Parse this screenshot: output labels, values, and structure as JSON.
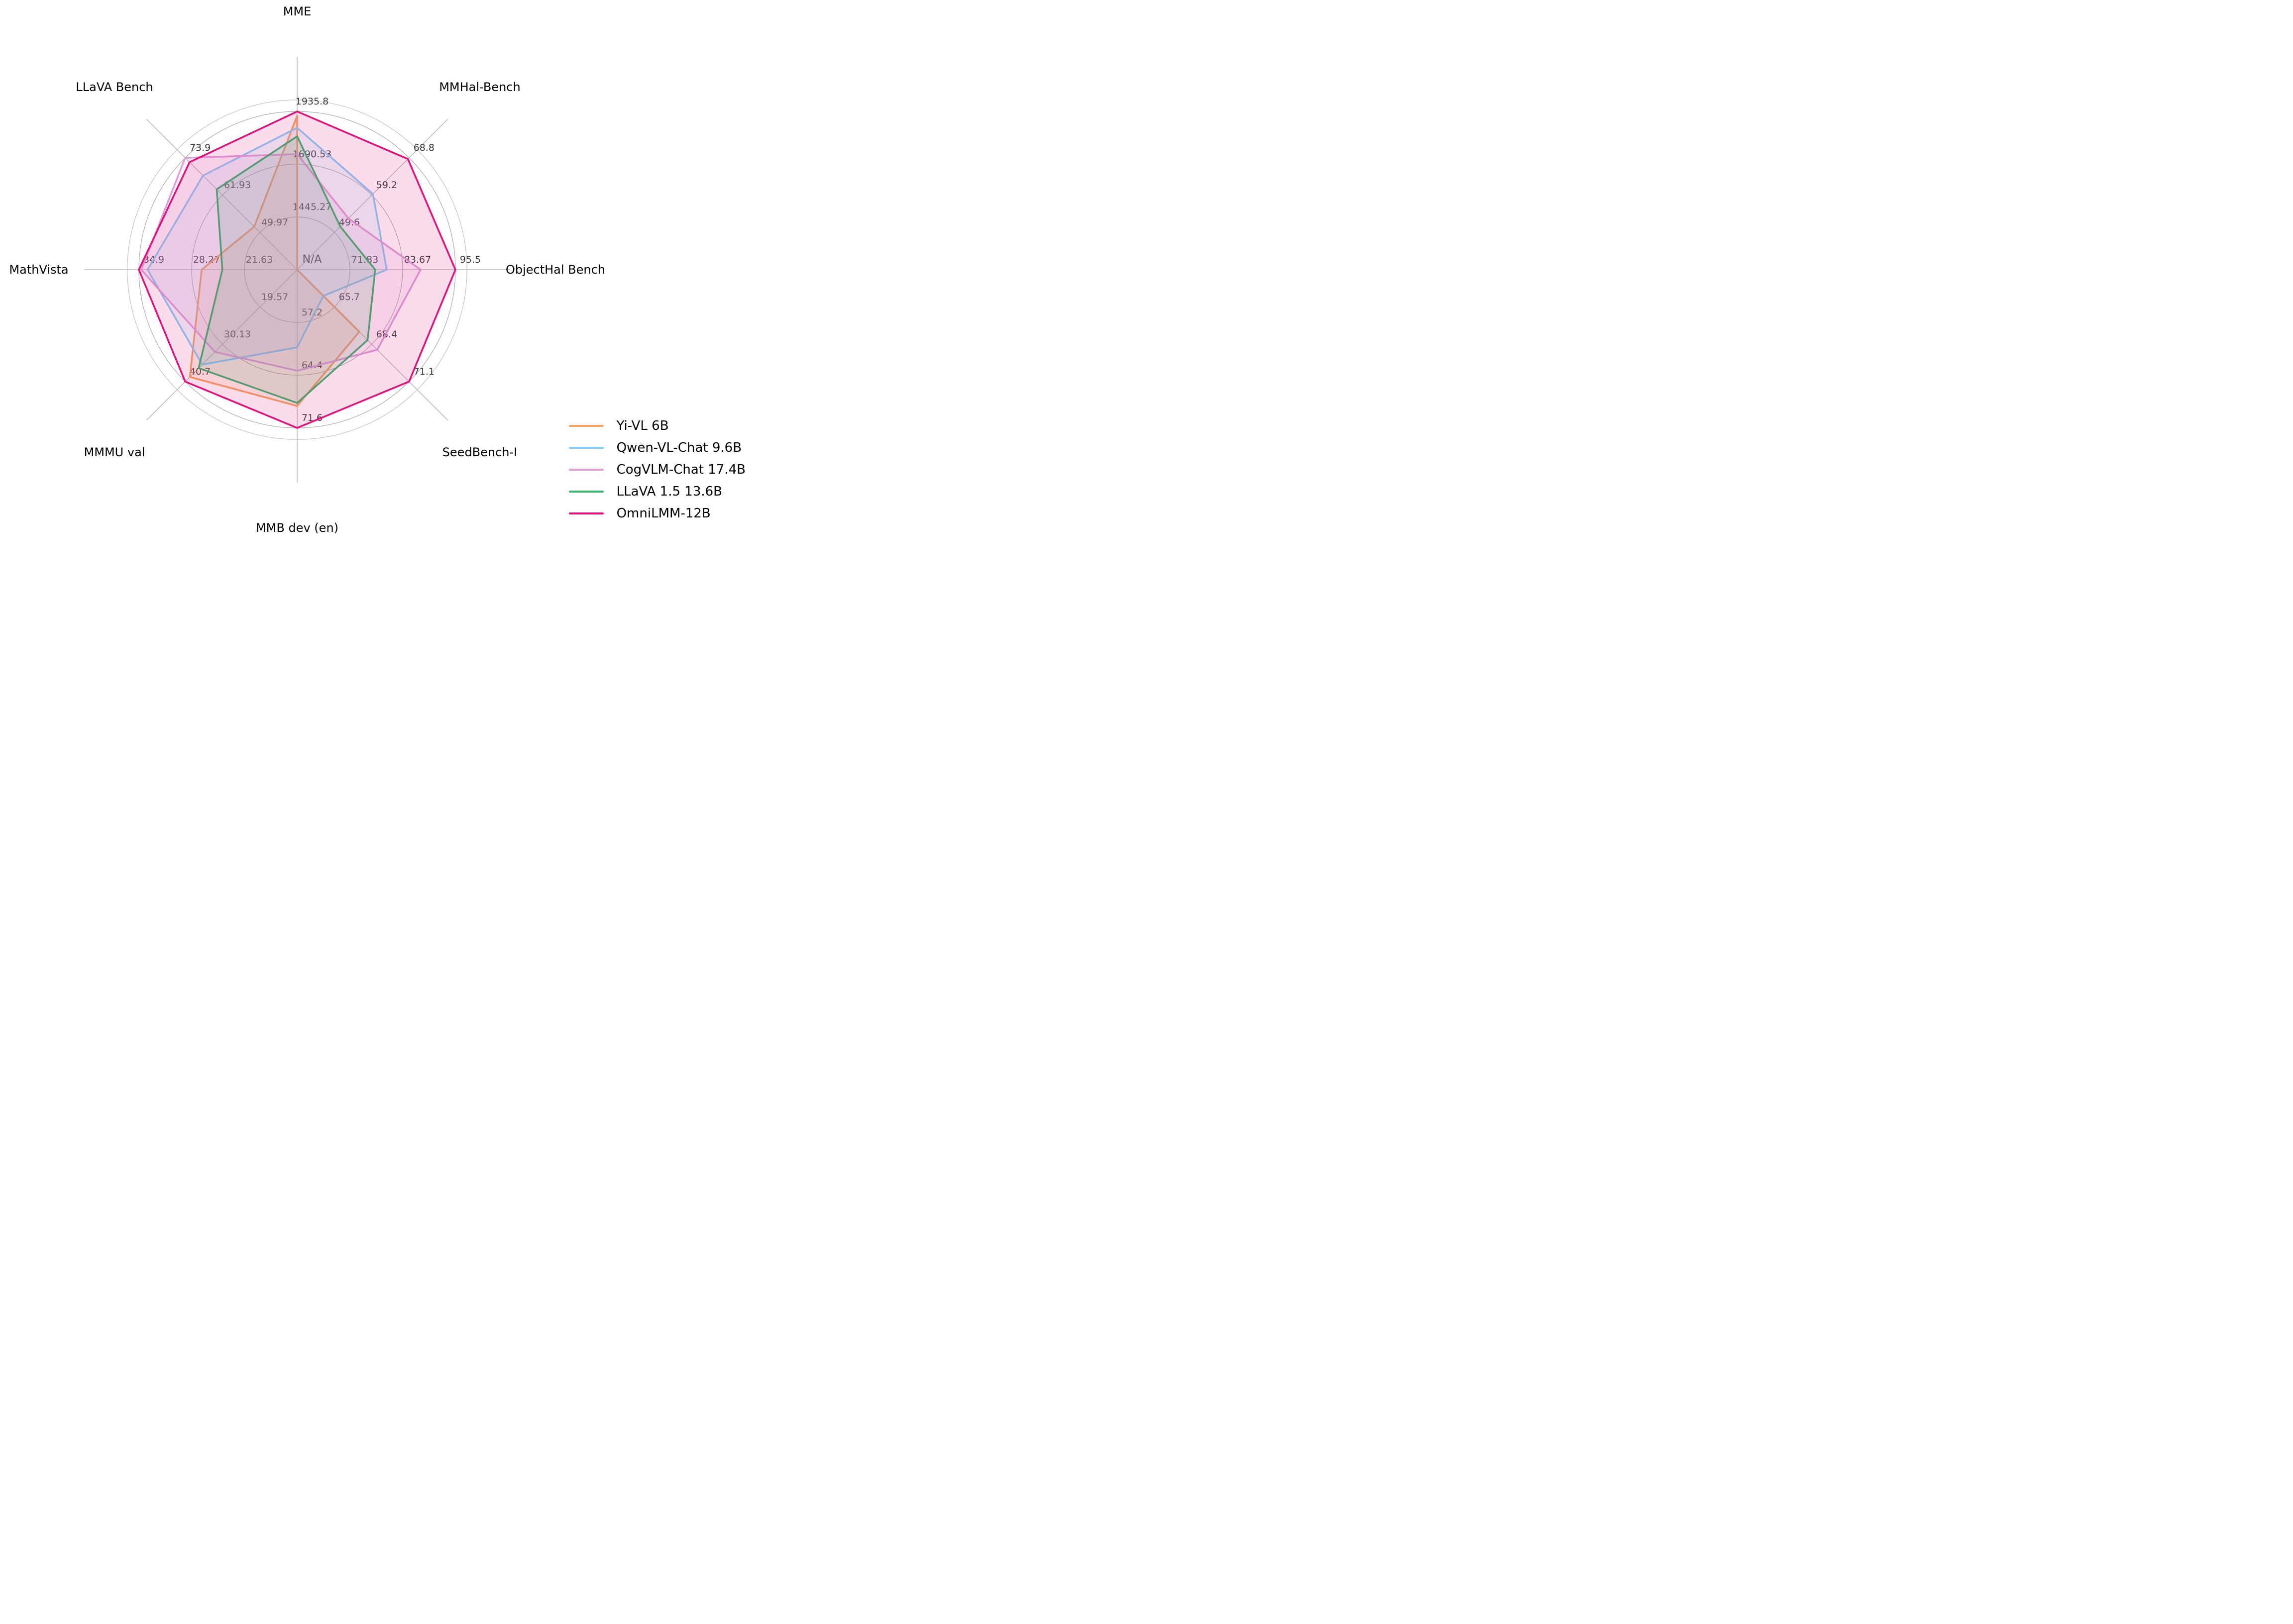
{
  "chart_data": {
    "type": "radar",
    "title": "",
    "grid": true,
    "legend_position": "lower right",
    "rings_per_axis": 3,
    "center_label": "N/A",
    "axes": [
      {
        "label": "MME",
        "ticks": [
          1445.27,
          1690.53,
          1935.8
        ],
        "min": 1200.01,
        "max": 1935.8
      },
      {
        "label": "MMHal-Bench",
        "ticks": [
          49.6,
          59.2,
          68.8
        ],
        "min": 40.0,
        "max": 68.8
      },
      {
        "label": "ObjectHal Bench",
        "ticks": [
          71.83,
          83.67,
          95.5
        ],
        "min": 60.0,
        "max": 95.5,
        "center_label": "N/A"
      },
      {
        "label": "SeedBench-I",
        "ticks": [
          65.7,
          68.4,
          71.1
        ],
        "min": 63.0,
        "max": 71.1
      },
      {
        "label": "MMB dev (en)",
        "ticks": [
          57.2,
          64.4,
          71.6
        ],
        "min": 50.0,
        "max": 71.6
      },
      {
        "label": "MMMU val",
        "ticks": [
          19.57,
          30.13,
          40.7
        ],
        "min": 9.01,
        "max": 40.7
      },
      {
        "label": "MathVista",
        "ticks": [
          21.63,
          28.27,
          34.9
        ],
        "min": 14.99,
        "max": 34.9
      },
      {
        "label": "LLaVA Bench",
        "ticks": [
          49.97,
          61.93,
          73.9
        ],
        "min": 38.01,
        "max": 73.9
      }
    ],
    "series": [
      {
        "name": "Yi-VL 6B",
        "color": "#F4A460",
        "values": [
          1915,
          null,
          null,
          67.5,
          68.6,
          39.4,
          27.0,
          51.8
        ]
      },
      {
        "name": "Qwen-VL-Chat 9.6B",
        "color": "#87CEFA",
        "values": [
          1860,
          59.5,
          80.1,
          64.9,
          60.6,
          35.9,
          33.8,
          68.2
        ]
      },
      {
        "name": "CogVLM-Chat 17.4B",
        "color": "#DDA0DD",
        "values": [
          1737,
          53.2,
          87.7,
          68.8,
          63.8,
          32.3,
          34.6,
          73.9
        ]
      },
      {
        "name": "LLaVA 1.5 13.6B",
        "color": "#3CB371",
        "values": [
          1820,
          51.1,
          77.5,
          68.1,
          68.2,
          36.9,
          24.4,
          63.8
        ]
      },
      {
        "name": "OmniLMM-12B",
        "color": "#E2117C",
        "values": [
          1935.8,
          68.5,
          95.5,
          71.1,
          71.6,
          40.7,
          34.9,
          72.5
        ]
      }
    ],
    "style": {
      "grid_color": "#ababab",
      "spine_color": "#bdbdbd",
      "fill_opacity": 0.15,
      "line_width": 3.5,
      "geometry": {
        "cx": 597,
        "cy": 542,
        "radius": 318,
        "spoke_extent": 1.345,
        "title_radius_ratio": 1.632,
        "spine_ratio": 1.073,
        "tick_offset_x": 30,
        "tick_offset_y": -14
      }
    }
  }
}
